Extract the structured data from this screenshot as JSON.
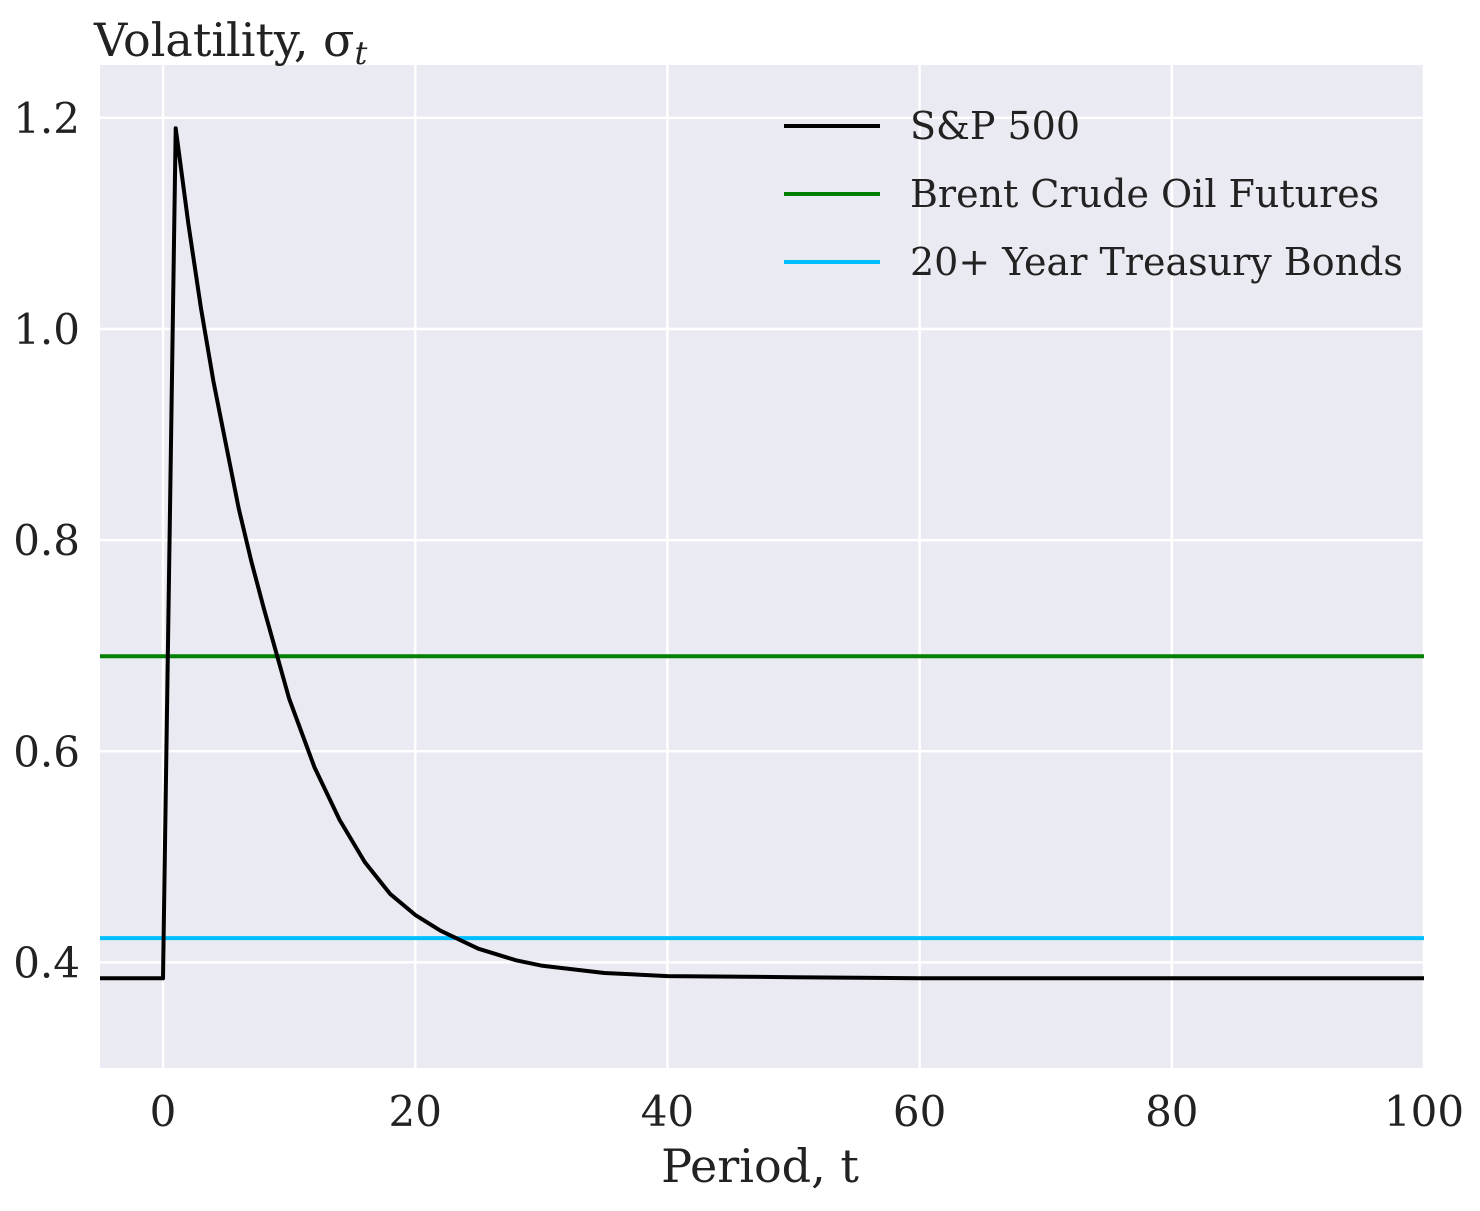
{
  "chart_data": {
    "type": "line",
    "ylabel": "Volatility, σ",
    "ylabel_sub": "t",
    "xlabel": "Period, t",
    "xlim": [
      -5,
      100
    ],
    "ylim": [
      0.3,
      1.25
    ],
    "x_ticks": [
      0,
      20,
      40,
      60,
      80,
      100
    ],
    "x_tick_labels": [
      "0",
      "20",
      "40",
      "60",
      "80",
      "100"
    ],
    "y_ticks": [
      0.4,
      0.6,
      0.8,
      1.0,
      1.2
    ],
    "y_tick_labels": [
      "0.4",
      "0.6",
      "0.8",
      "1.0",
      "1.2"
    ],
    "grid": true,
    "legend_position": "top-right",
    "background": "#eaeaf2",
    "series": [
      {
        "name": "S&P 500",
        "color": "#000000",
        "x": [
          -5,
          0,
          1,
          2,
          3,
          4,
          5,
          6,
          7,
          8,
          10,
          12,
          14,
          16,
          18,
          20,
          22,
          25,
          28,
          30,
          35,
          40,
          50,
          60,
          80,
          100
        ],
        "y": [
          0.385,
          0.385,
          1.19,
          1.1,
          1.02,
          0.95,
          0.89,
          0.83,
          0.78,
          0.735,
          0.65,
          0.585,
          0.535,
          0.495,
          0.465,
          0.445,
          0.43,
          0.413,
          0.402,
          0.397,
          0.39,
          0.387,
          0.386,
          0.385,
          0.385,
          0.385
        ]
      },
      {
        "name": "Brent Crude Oil Futures",
        "color": "#008000",
        "x": [
          -5,
          100
        ],
        "y": [
          0.69,
          0.69
        ]
      },
      {
        "name": "20+ Year Treasury Bonds",
        "color": "#00bfff",
        "x": [
          -5,
          100
        ],
        "y": [
          0.423,
          0.423
        ]
      }
    ]
  }
}
